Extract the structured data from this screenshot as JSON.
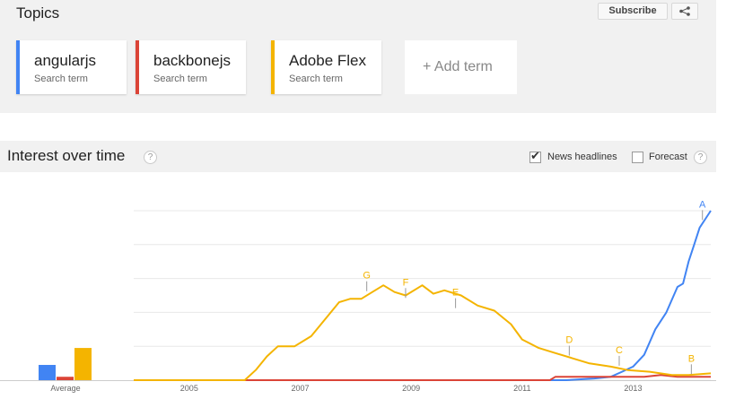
{
  "topics": {
    "title": "Topics",
    "subscribe_label": "Subscribe",
    "share_icon": "share-icon",
    "terms": [
      {
        "name": "angularjs",
        "sub": "Search term",
        "color": "#4184f3"
      },
      {
        "name": "backbonejs",
        "sub": "Search term",
        "color": "#db4437"
      },
      {
        "name": "Adobe Flex",
        "sub": "Search term",
        "color": "#f4b400"
      }
    ],
    "add_term_label": "+ Add term"
  },
  "interest": {
    "title": "Interest over time",
    "help": "?",
    "news_headlines": {
      "label": "News headlines",
      "checked": true
    },
    "forecast": {
      "label": "Forecast",
      "checked": false
    }
  },
  "chart_data": {
    "type": "line",
    "average_label": "Average",
    "averages": [
      {
        "name": "angularjs",
        "value": 9,
        "color": "#4184f3"
      },
      {
        "name": "backbonejs",
        "value": 2,
        "color": "#db4437"
      },
      {
        "name": "Adobe Flex",
        "value": 19,
        "color": "#f4b400"
      }
    ],
    "x_ticks": [
      "2005",
      "2007",
      "2009",
      "2011",
      "2013"
    ],
    "xlim": [
      2004.0,
      2014.4
    ],
    "ylim": [
      0,
      100
    ],
    "grid": true,
    "series": [
      {
        "name": "angularjs",
        "color": "#4184f3",
        "points": [
          [
            2004.0,
            0
          ],
          [
            2011.8,
            0
          ],
          [
            2012.3,
            1
          ],
          [
            2012.6,
            2
          ],
          [
            2012.8,
            5
          ],
          [
            2013.0,
            8
          ],
          [
            2013.2,
            15
          ],
          [
            2013.4,
            30
          ],
          [
            2013.6,
            40
          ],
          [
            2013.8,
            55
          ],
          [
            2013.9,
            57
          ],
          [
            2014.0,
            70
          ],
          [
            2014.1,
            80
          ],
          [
            2014.2,
            90
          ],
          [
            2014.3,
            95
          ],
          [
            2014.4,
            100
          ]
        ]
      },
      {
        "name": "backbonejs",
        "color": "#db4437",
        "points": [
          [
            2004.0,
            0
          ],
          [
            2011.5,
            0
          ],
          [
            2011.6,
            2
          ],
          [
            2012.0,
            2
          ],
          [
            2012.4,
            2
          ],
          [
            2012.8,
            2
          ],
          [
            2013.2,
            2
          ],
          [
            2013.5,
            3
          ],
          [
            2013.8,
            2
          ],
          [
            2014.4,
            2
          ]
        ]
      },
      {
        "name": "Adobe Flex",
        "color": "#f4b400",
        "points": [
          [
            2004.0,
            0
          ],
          [
            2006.0,
            0
          ],
          [
            2006.2,
            6
          ],
          [
            2006.4,
            14
          ],
          [
            2006.6,
            20
          ],
          [
            2006.9,
            20
          ],
          [
            2007.2,
            26
          ],
          [
            2007.5,
            38
          ],
          [
            2007.7,
            46
          ],
          [
            2007.9,
            48
          ],
          [
            2008.1,
            48
          ],
          [
            2008.3,
            52
          ],
          [
            2008.5,
            56
          ],
          [
            2008.7,
            52
          ],
          [
            2008.9,
            50
          ],
          [
            2009.2,
            56
          ],
          [
            2009.4,
            51
          ],
          [
            2009.6,
            53
          ],
          [
            2009.9,
            50
          ],
          [
            2010.2,
            44
          ],
          [
            2010.5,
            41
          ],
          [
            2010.8,
            33
          ],
          [
            2011.0,
            24
          ],
          [
            2011.3,
            19
          ],
          [
            2011.6,
            16
          ],
          [
            2011.9,
            13
          ],
          [
            2012.2,
            10
          ],
          [
            2012.6,
            8
          ],
          [
            2012.9,
            6
          ],
          [
            2013.3,
            5
          ],
          [
            2013.7,
            3
          ],
          [
            2014.0,
            3
          ],
          [
            2014.4,
            4
          ]
        ]
      }
    ],
    "markers": [
      {
        "label": "A",
        "x": 2014.25,
        "y": 94,
        "color": "#4184f3"
      },
      {
        "label": "B",
        "x": 2014.05,
        "y": 3,
        "color": "#f4b400"
      },
      {
        "label": "C",
        "x": 2012.75,
        "y": 8,
        "color": "#f4b400"
      },
      {
        "label": "D",
        "x": 2011.85,
        "y": 14,
        "color": "#f4b400"
      },
      {
        "label": "E",
        "x": 2009.8,
        "y": 42,
        "color": "#f4b400"
      },
      {
        "label": "F",
        "x": 2008.9,
        "y": 48,
        "color": "#f4b400"
      },
      {
        "label": "G",
        "x": 2008.2,
        "y": 52,
        "color": "#f4b400"
      }
    ]
  }
}
